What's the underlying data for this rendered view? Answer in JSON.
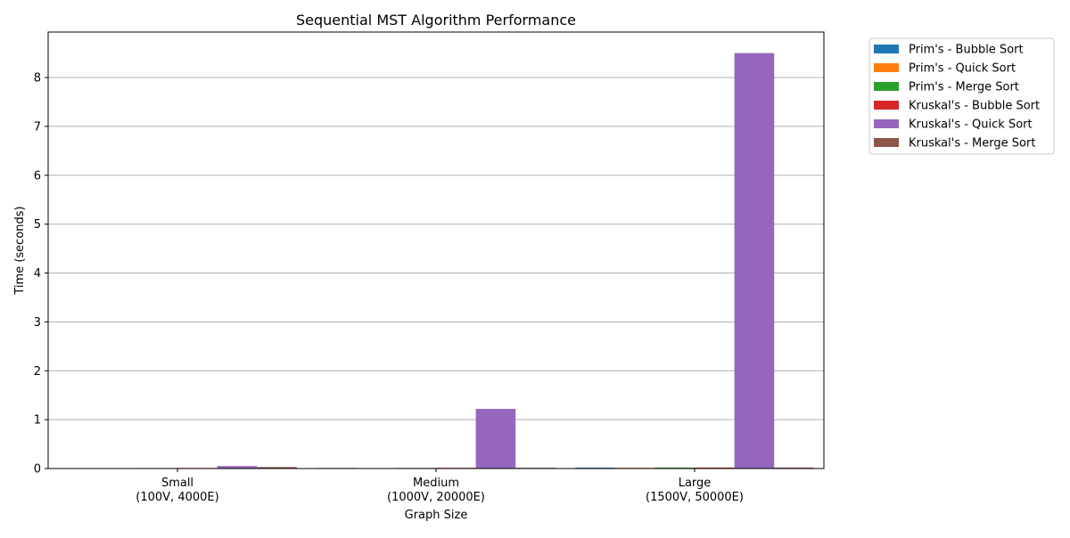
{
  "chart_data": {
    "type": "bar",
    "title": "Sequential MST Algorithm Performance",
    "xlabel": "Graph Size",
    "ylabel": "Time (seconds)",
    "categories": [
      [
        "Small",
        "(100V, 4000E)"
      ],
      [
        "Medium",
        "(1000V, 20000E)"
      ],
      [
        "Large",
        "(1500V, 50000E)"
      ]
    ],
    "ylim": [
      0,
      8.93
    ],
    "yticks": [
      0,
      1,
      2,
      3,
      4,
      5,
      6,
      7,
      8
    ],
    "grid": "y",
    "legend_position": "outside-top-right",
    "series": [
      {
        "name": "Prim's - Bubble Sort",
        "color": "#1f77b4",
        "values": [
          0.002,
          0.012,
          0.018
        ]
      },
      {
        "name": "Prim's - Quick Sort",
        "color": "#ff7f0e",
        "values": [
          0.002,
          0.01,
          0.015
        ]
      },
      {
        "name": "Prim's - Merge Sort",
        "color": "#2ca02c",
        "values": [
          0.01,
          0.012,
          0.02
        ]
      },
      {
        "name": "Kruskal's - Bubble Sort",
        "color": "#d62728",
        "values": [
          0.012,
          0.015,
          0.02
        ]
      },
      {
        "name": "Kruskal's - Quick Sort",
        "color": "#9467bd",
        "values": [
          0.05,
          1.22,
          8.5
        ]
      },
      {
        "name": "Kruskal's - Merge Sort",
        "color": "#8c564b",
        "values": [
          0.03,
          0.015,
          0.02
        ]
      }
    ]
  }
}
